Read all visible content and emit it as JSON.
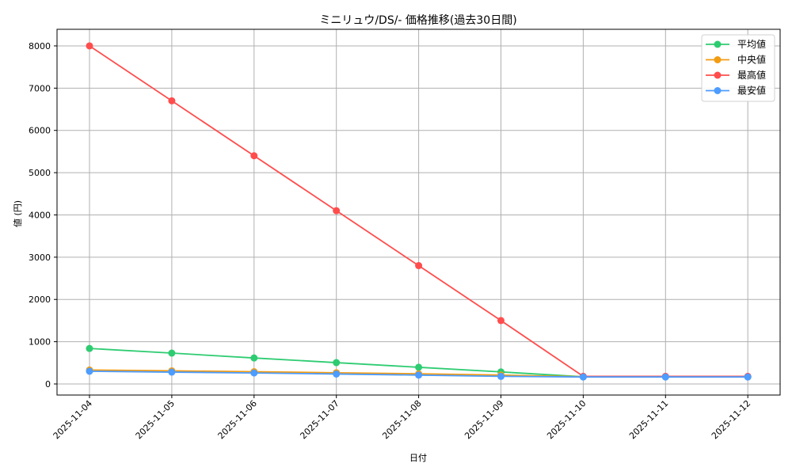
{
  "chart_data": {
    "type": "line",
    "title": "ミニリュウ/DS/- 価格推移(過去30日間)",
    "xlabel": "日付",
    "ylabel": "値 (円)",
    "categories": [
      "2025-11-04",
      "2025-11-05",
      "2025-11-06",
      "2025-11-07",
      "2025-11-08",
      "2025-11-09",
      "2025-11-10",
      "2025-11-11",
      "2025-11-12"
    ],
    "ylim": [
      -250,
      8400
    ],
    "yticks": [
      0,
      1000,
      2000,
      3000,
      4000,
      5000,
      6000,
      7000,
      8000
    ],
    "grid": true,
    "legend_position": "upper right",
    "series": [
      {
        "name": "平均値",
        "color": "#2ecc71",
        "values": [
          840,
          730,
          615,
          505,
          395,
          285,
          170,
          170,
          170
        ]
      },
      {
        "name": "中央値",
        "color": "#f39c12",
        "values": [
          330,
          310,
          290,
          265,
          240,
          210,
          170,
          170,
          170
        ]
      },
      {
        "name": "最高値",
        "color": "#ff4d4d",
        "values": [
          8000,
          6700,
          5400,
          4100,
          2800,
          1500,
          180,
          180,
          180
        ]
      },
      {
        "name": "最安値",
        "color": "#4d9cff",
        "values": [
          300,
          280,
          260,
          235,
          210,
          180,
          165,
          165,
          165
        ]
      }
    ]
  }
}
